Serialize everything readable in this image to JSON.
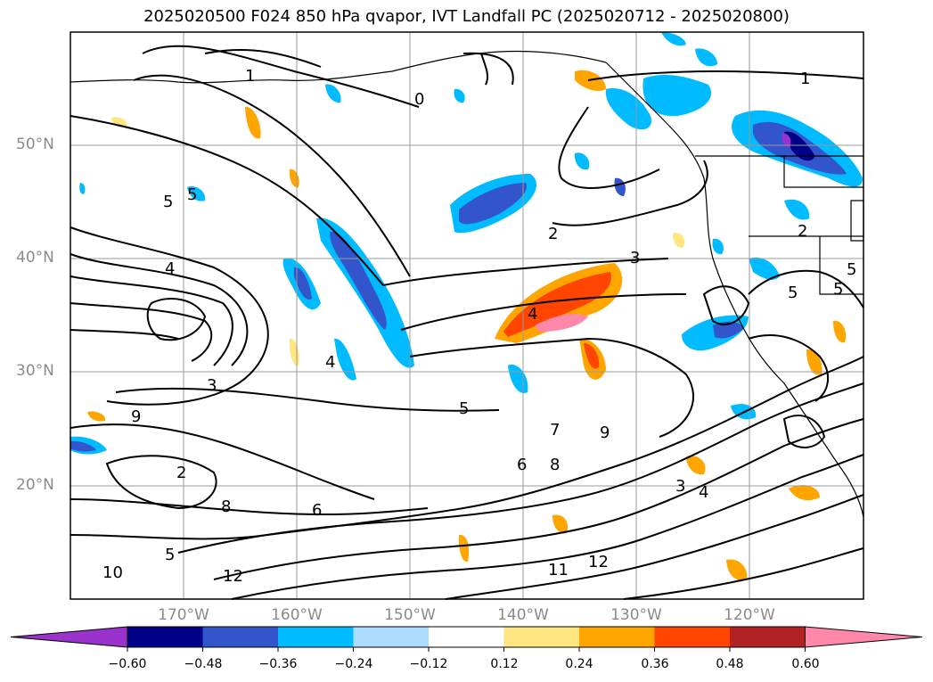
{
  "title": "2025020500 F024 850 hPa qvapor, IVT Landfall PC (2025020712 - 2025020800)",
  "lat_labels": [
    "50°N",
    "40°N",
    "30°N",
    "20°N"
  ],
  "lon_labels": [
    "170°W",
    "160°W",
    "150°W",
    "140°W",
    "130°W",
    "120°W"
  ],
  "colorbar": {
    "ticks": [
      "−0.60",
      "−0.48",
      "−0.36",
      "−0.24",
      "−0.12",
      "0.12",
      "0.24",
      "0.36",
      "0.48",
      "0.60"
    ],
    "colors": [
      "#9933cc",
      "#000088",
      "#3355cc",
      "#00bbff",
      "#aaddff",
      "#ffffff",
      "#ffe680",
      "#ffa500",
      "#ff4500",
      "#b22222",
      "#ff88aa"
    ],
    "extend": "both"
  },
  "contour_labels": [
    {
      "t": "1"
    },
    {
      "t": "1"
    },
    {
      "t": "0"
    },
    {
      "t": "2"
    },
    {
      "t": "2"
    },
    {
      "t": "3"
    },
    {
      "t": "4"
    },
    {
      "t": "4"
    },
    {
      "t": "4"
    },
    {
      "t": "5"
    },
    {
      "t": "5"
    },
    {
      "t": "5"
    },
    {
      "t": "5"
    },
    {
      "t": "5"
    },
    {
      "t": "6"
    },
    {
      "t": "7"
    },
    {
      "t": "8"
    },
    {
      "t": "9"
    },
    {
      "t": "9"
    },
    {
      "t": "10"
    },
    {
      "t": "11"
    },
    {
      "t": "12"
    },
    {
      "t": "12"
    },
    {
      "t": "3"
    },
    {
      "t": "4"
    },
    {
      "t": "6"
    },
    {
      "t": "8"
    },
    {
      "t": "5"
    },
    {
      "t": "2"
    },
    {
      "t": "5"
    },
    {
      "t": "3"
    }
  ],
  "colors": {
    "frame": "#000000",
    "grid": "#9a9a9a",
    "tick_label": "#8a8a8a"
  }
}
